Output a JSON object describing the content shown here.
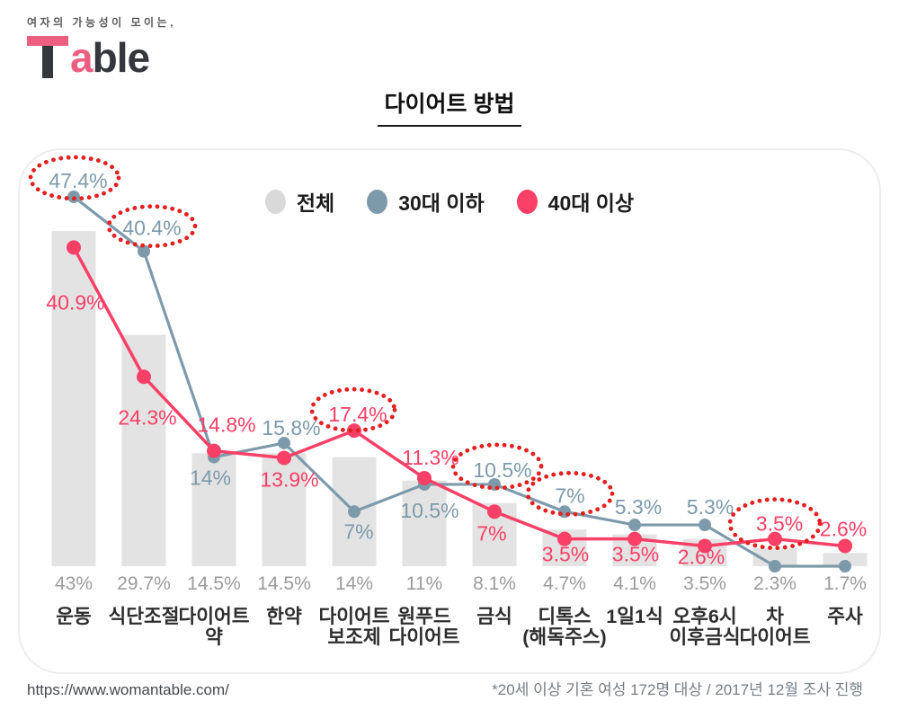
{
  "logo": {
    "tagline": "여자의 가능성이 모이는,",
    "brand": {
      "t": "T",
      "a": "a",
      "rest": "ble"
    }
  },
  "title": "다이어트 방법",
  "legend": {
    "items": [
      {
        "label": "전체",
        "color": "#d9d9d9"
      },
      {
        "label": "30대 이하",
        "color": "#7d9aab"
      },
      {
        "label": "40대 이상",
        "color": "#fa4067"
      }
    ]
  },
  "footer": {
    "url": "https://www.womantable.com/",
    "note": "*20세 이상 기혼 여성 172명 대상 / 2017년 12월 조사 진행"
  },
  "colors": {
    "bar": "#e3e3e3",
    "blue": "#7d9aab",
    "pink": "#fa4067",
    "highlight": "#e32020",
    "pct_label": "#9b9b9b",
    "category": "#2e2e2e",
    "logo_pink": "#ec5f80",
    "logo_dark": "#34373c"
  },
  "chart_data": {
    "type": "bar",
    "title": "다이어트 방법",
    "ylim": [
      0,
      50
    ],
    "grid": false,
    "legend_position": "top-center",
    "categories": [
      "운동",
      "식단조절",
      "다이어트\n약",
      "한약",
      "다이어트\n보조제",
      "원푸드\n다이어트",
      "금식",
      "디톡스\n(해독주스)",
      "1일1식",
      "오후6시\n이후금식",
      "차\n다이어트",
      "주사"
    ],
    "series": [
      {
        "name": "전체",
        "kind": "bar",
        "color": "#e3e3e3",
        "label_color": "#9b9b9b",
        "values": [
          43,
          29.7,
          14.5,
          14.5,
          14,
          11,
          8.1,
          4.7,
          4.1,
          3.5,
          2.3,
          1.7
        ],
        "labels": [
          "43%",
          "29.7%",
          "14.5%",
          "14.5%",
          "14%",
          "11%",
          "8.1%",
          "4.7%",
          "4.1%",
          "3.5%",
          "2.3%",
          "1.7%"
        ]
      },
      {
        "name": "30대 이하",
        "kind": "line",
        "color": "#7d9aab",
        "values": [
          47.4,
          40.4,
          14,
          15.8,
          7,
          10.5,
          10.5,
          7,
          5.3,
          5.3,
          0,
          0
        ],
        "labels": [
          "47.4%",
          "40.4%",
          "14%",
          "15.8%",
          "7%",
          "10.5%",
          "10.5%",
          "7%",
          "5.3%",
          "5.3%",
          "",
          ""
        ],
        "label_offsets": [
          [
            5,
            -18
          ],
          [
            9,
            -26
          ],
          [
            -4,
            23
          ],
          [
            8,
            -17
          ],
          [
            5,
            22
          ],
          [
            6,
            29
          ],
          [
            9,
            -16
          ],
          [
            6,
            -18
          ],
          [
            4,
            -20
          ],
          [
            6,
            -20
          ],
          [
            0,
            0
          ],
          [
            0,
            0
          ]
        ],
        "circled": [
          {
            "dx": 1,
            "dy": -21,
            "rx": 49,
            "ry": 23
          },
          {
            "dx": 9,
            "dy": -28,
            "rx": 48,
            "ry": 22
          },
          null,
          null,
          null,
          null,
          {
            "dx": 3,
            "dy": -20,
            "rx": 49,
            "ry": 24
          },
          {
            "dx": 6,
            "dy": -20,
            "rx": 47,
            "ry": 23
          },
          null,
          null,
          null,
          null
        ]
      },
      {
        "name": "40대 이상",
        "kind": "line",
        "color": "#fa4067",
        "values": [
          40.9,
          24.3,
          14.8,
          13.9,
          17.4,
          11.3,
          7,
          3.5,
          3.5,
          2.6,
          3.5,
          2.6
        ],
        "labels": [
          "40.9%",
          "24.3%",
          "14.8%",
          "13.9%",
          "17.4%",
          "11.3%",
          "7%",
          "3.5%",
          "3.5%",
          "2.6%",
          "3.5%",
          "2.6%"
        ],
        "label_offsets": [
          [
            2,
            61
          ],
          [
            4,
            45
          ],
          [
            14,
            -29
          ],
          [
            6,
            24
          ],
          [
            4,
            -18
          ],
          [
            7,
            -23
          ],
          [
            -3,
            24
          ],
          [
            1,
            17
          ],
          [
            1,
            17
          ],
          [
            -4,
            12
          ],
          [
            5,
            -17
          ],
          [
            -2,
            -19
          ]
        ],
        "circled": [
          null,
          null,
          null,
          null,
          {
            "dx": -1,
            "dy": -23,
            "rx": 46,
            "ry": 23
          },
          null,
          null,
          null,
          null,
          null,
          {
            "dx": 0,
            "dy": -17,
            "rx": 50,
            "ry": 27
          },
          null
        ]
      }
    ],
    "highlight_color": "#e32020"
  }
}
